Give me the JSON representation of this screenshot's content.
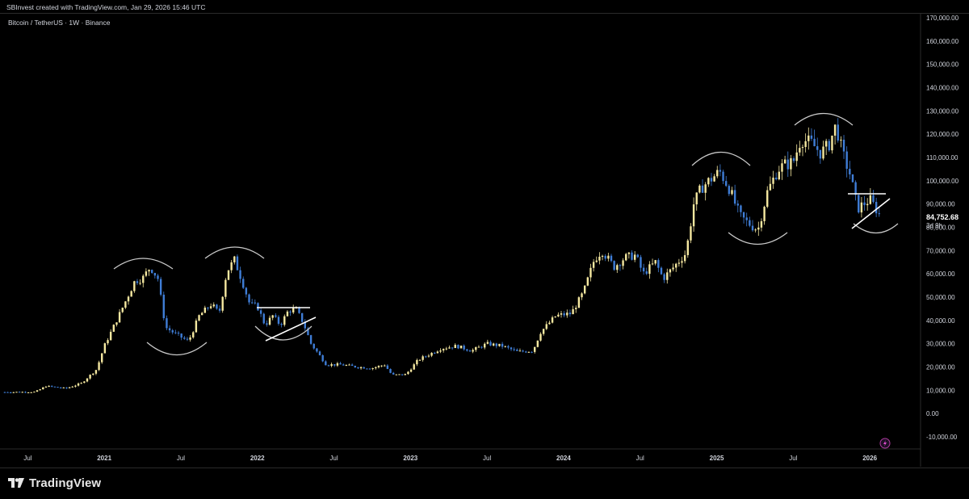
{
  "caption": "SBInvest created with TradingView.com, Jan 29, 2026 15:46 UTC",
  "symbol_title": "Bitcoin / TetherUS · 1W · Binance",
  "branding": "TradingView",
  "colors": {
    "background": "#000000",
    "up": "#f5e8a0",
    "down": "#3f7dd6",
    "annotation": "#ffffff",
    "arc": "#c9c9c9",
    "text": "#d1d4dc",
    "grid": "#1a1a1a"
  },
  "last_price": {
    "value": "84,752.68",
    "countdown": "3d 9h"
  },
  "chart_data": {
    "type": "candlestick",
    "title": "Bitcoin / TetherUS · 1W · Binance",
    "y_axis": {
      "ticks": [
        -10000,
        0,
        10000,
        20000,
        30000,
        40000,
        50000,
        60000,
        70000,
        80000,
        90000,
        100000,
        110000,
        120000,
        130000,
        140000,
        150000,
        160000,
        170000
      ],
      "tick_labels": [
        "-10,000.00",
        "0.00",
        "10,000.00",
        "20,000.00",
        "30,000.00",
        "40,000.00",
        "50,000.00",
        "60,000.00",
        "70,000.00",
        "80,000.00",
        "90,000.00",
        "100,000.00",
        "110,000.00",
        "120,000.00",
        "130,000.00",
        "140,000.00",
        "150,000.00",
        "160,000.00",
        "170,000.00"
      ],
      "range": [
        -10000,
        170000
      ]
    },
    "x_axis": {
      "ticks": [
        {
          "t": 2020.5,
          "label": "Jul",
          "bold": false
        },
        {
          "t": 2021.0,
          "label": "2021",
          "bold": true
        },
        {
          "t": 2021.5,
          "label": "Jul",
          "bold": false
        },
        {
          "t": 2022.0,
          "label": "2022",
          "bold": true
        },
        {
          "t": 2022.5,
          "label": "Jul",
          "bold": false
        },
        {
          "t": 2023.0,
          "label": "2023",
          "bold": true
        },
        {
          "t": 2023.5,
          "label": "Jul",
          "bold": false
        },
        {
          "t": 2024.0,
          "label": "2024",
          "bold": true
        },
        {
          "t": 2024.5,
          "label": "Jul",
          "bold": false
        },
        {
          "t": 2025.0,
          "label": "2025",
          "bold": true
        },
        {
          "t": 2025.5,
          "label": "Jul",
          "bold": false
        },
        {
          "t": 2026.0,
          "label": "2026",
          "bold": true
        }
      ],
      "range": [
        2020.34,
        2026.3
      ]
    },
    "price_path": [
      [
        2020.35,
        9200
      ],
      [
        2020.55,
        9300
      ],
      [
        2020.62,
        11800
      ],
      [
        2020.75,
        10800
      ],
      [
        2020.85,
        13000
      ],
      [
        2020.95,
        19000
      ],
      [
        2021.0,
        29000
      ],
      [
        2021.08,
        40000
      ],
      [
        2021.13,
        47000
      ],
      [
        2021.2,
        57000
      ],
      [
        2021.25,
        58000
      ],
      [
        2021.3,
        63000
      ],
      [
        2021.35,
        58000
      ],
      [
        2021.4,
        37000
      ],
      [
        2021.47,
        34000
      ],
      [
        2021.55,
        31000
      ],
      [
        2021.62,
        42000
      ],
      [
        2021.7,
        47000
      ],
      [
        2021.75,
        43000
      ],
      [
        2021.8,
        61000
      ],
      [
        2021.85,
        66000
      ],
      [
        2021.9,
        57000
      ],
      [
        2021.95,
        47000
      ],
      [
        2022.0,
        46000
      ],
      [
        2022.05,
        38000
      ],
      [
        2022.1,
        42000
      ],
      [
        2022.15,
        38000
      ],
      [
        2022.2,
        44000
      ],
      [
        2022.25,
        45000
      ],
      [
        2022.3,
        39000
      ],
      [
        2022.35,
        30000
      ],
      [
        2022.45,
        21000
      ],
      [
        2022.55,
        21000
      ],
      [
        2022.65,
        20000
      ],
      [
        2022.75,
        19500
      ],
      [
        2022.83,
        21000
      ],
      [
        2022.88,
        16500
      ],
      [
        2022.97,
        16800
      ],
      [
        2023.05,
        23000
      ],
      [
        2023.2,
        28000
      ],
      [
        2023.3,
        29000
      ],
      [
        2023.4,
        27000
      ],
      [
        2023.5,
        30000
      ],
      [
        2023.6,
        29000
      ],
      [
        2023.7,
        26500
      ],
      [
        2023.8,
        27000
      ],
      [
        2023.85,
        35000
      ],
      [
        2023.95,
        42000
      ],
      [
        2024.05,
        43000
      ],
      [
        2024.13,
        52000
      ],
      [
        2024.2,
        66000
      ],
      [
        2024.25,
        70000
      ],
      [
        2024.33,
        63000
      ],
      [
        2024.4,
        67000
      ],
      [
        2024.47,
        68000
      ],
      [
        2024.52,
        60000
      ],
      [
        2024.6,
        65000
      ],
      [
        2024.65,
        58000
      ],
      [
        2024.72,
        63000
      ],
      [
        2024.8,
        69000
      ],
      [
        2024.85,
        90000
      ],
      [
        2024.9,
        97000
      ],
      [
        2024.95,
        100000
      ],
      [
        2025.02,
        104000
      ],
      [
        2025.08,
        97000
      ],
      [
        2025.15,
        85000
      ],
      [
        2025.2,
        82000
      ],
      [
        2025.27,
        79000
      ],
      [
        2025.33,
        95000
      ],
      [
        2025.4,
        105000
      ],
      [
        2025.45,
        107000
      ],
      [
        2025.5,
        108000
      ],
      [
        2025.55,
        118000
      ],
      [
        2025.62,
        116000
      ],
      [
        2025.68,
        112000
      ],
      [
        2025.73,
        115000
      ],
      [
        2025.78,
        124000
      ],
      [
        2025.82,
        112000
      ],
      [
        2025.87,
        103000
      ],
      [
        2025.92,
        88000
      ],
      [
        2025.96,
        90000
      ],
      [
        2026.0,
        92000
      ],
      [
        2026.04,
        88000
      ],
      [
        2026.07,
        84752
      ]
    ]
  }
}
